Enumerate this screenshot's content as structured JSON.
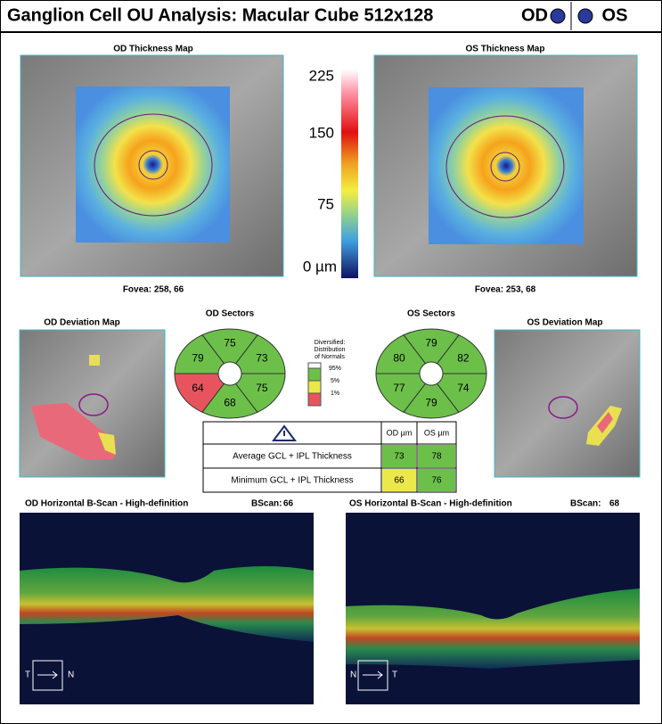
{
  "header": {
    "title": "Ganglion Cell OU Analysis: Macular Cube 512x128",
    "od": "OD",
    "os": "OS"
  },
  "thickness_maps": [
    {
      "title": "OD Thickness Map",
      "fovea": "Fovea: 258, 66"
    },
    {
      "title": "OS Thickness Map",
      "fovea": "Fovea: 253, 68"
    }
  ],
  "color_scale": {
    "labels": [
      "225",
      "150",
      "75",
      "0 µm"
    ]
  },
  "deviation_maps": [
    {
      "title": "OD Deviation Map"
    },
    {
      "title": "OS Deviation Map"
    }
  ],
  "sectors": [
    {
      "title": "OD Sectors",
      "values": [
        73,
        75,
        79,
        64,
        68,
        75
      ]
    },
    {
      "title": "OS Sectors",
      "values": [
        82,
        79,
        80,
        77,
        79,
        74
      ]
    }
  ],
  "legend": {
    "title": [
      "Diversified:",
      "Distribution",
      "of Normals"
    ],
    "items": [
      "95%",
      "5%",
      "1%"
    ]
  },
  "table": {
    "header": [
      "OD µm",
      "OS µm"
    ],
    "rows": [
      [
        "Average GCL + IPL Thickness",
        73,
        78
      ],
      [
        "Minimum GCL + IPL Thickness",
        66,
        76
      ]
    ]
  },
  "bscans": [
    {
      "title": "OD Horizontal B-Scan - High-definition",
      "bscan_label": "BScan:",
      "bscan": "66",
      "left": "T",
      "right": "N"
    },
    {
      "title": "OS Horizontal B-Scan - High-definition",
      "bscan_label": "BScan:",
      "bscan": "68",
      "left": "N",
      "right": "T"
    }
  ]
}
